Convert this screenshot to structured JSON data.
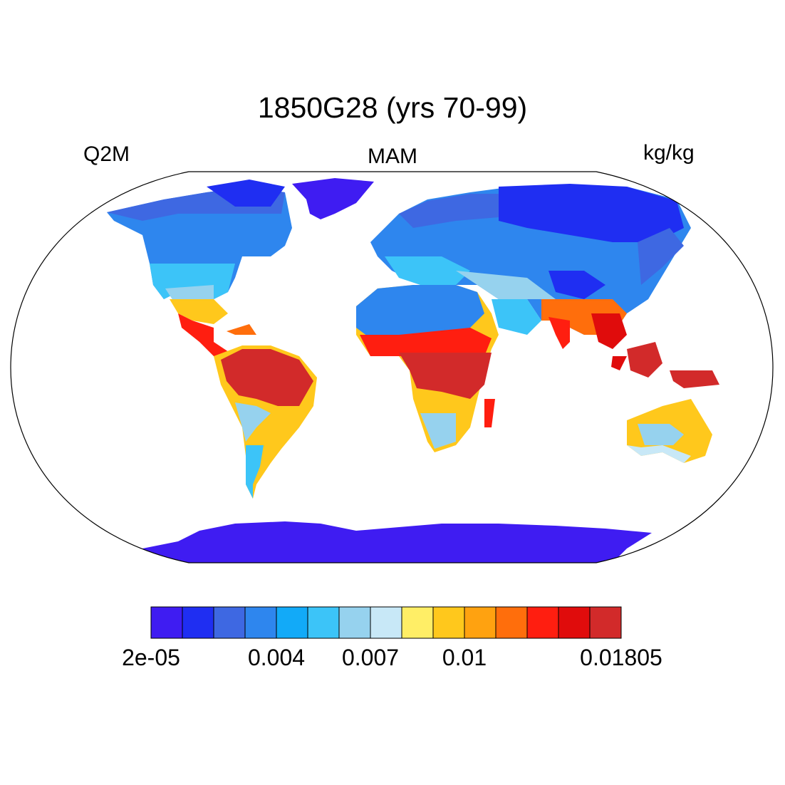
{
  "title": "1850G28 (yrs 70-99)",
  "left_label": "Q2M",
  "center_label": "MAM",
  "right_label": "kg/kg",
  "colorbar": {
    "colors": [
      "#3f1cf2",
      "#1f2ef2",
      "#3e68e2",
      "#2e86ee",
      "#12aaf8",
      "#3cc4f8",
      "#96d2ee",
      "#c8e8f7",
      "#ffee66",
      "#ffc81c",
      "#ffa210",
      "#ff6e0c",
      "#ff1e10",
      "#e00c0c",
      "#d22a2a"
    ],
    "labels": [
      {
        "text": "2e-05",
        "index": 0
      },
      {
        "text": "0.004",
        "index": 4
      },
      {
        "text": "0.007",
        "index": 7
      },
      {
        "text": "0.01",
        "index": 10
      },
      {
        "text": "0.01805",
        "index": 15
      }
    ]
  }
}
